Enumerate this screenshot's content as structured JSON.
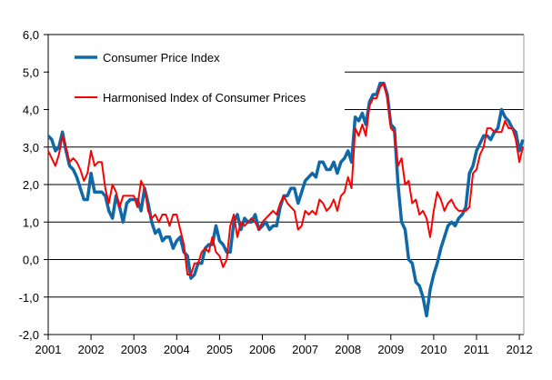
{
  "chart_data": {
    "type": "line",
    "title": "",
    "xlabel": "",
    "ylabel": "",
    "x_start": "2001-01",
    "frequency": "monthly",
    "xlim": [
      "2001-01",
      "2012-03"
    ],
    "ylim": [
      -2.0,
      6.0
    ],
    "x_ticks": [
      "2001",
      "2002",
      "2003",
      "2004",
      "2005",
      "2006",
      "2007",
      "2008",
      "2009",
      "2010",
      "2011",
      "2012"
    ],
    "y_ticks": [
      "-2,0",
      "-1,0",
      "0,0",
      "1,0",
      "2,0",
      "3,0",
      "4,0",
      "5,0",
      "6,0"
    ],
    "grid": "horizontal",
    "legend_position": "top-left",
    "series": [
      {
        "name": "Consumer Price Index",
        "color": "#0f69a8",
        "values": [
          3.3,
          3.2,
          2.9,
          3.0,
          3.4,
          2.9,
          2.5,
          2.4,
          2.2,
          1.9,
          1.6,
          1.6,
          2.3,
          1.8,
          1.8,
          1.8,
          1.7,
          1.3,
          1.1,
          1.7,
          1.4,
          1.0,
          1.5,
          1.6,
          1.6,
          1.6,
          1.3,
          1.9,
          1.5,
          1.0,
          0.7,
          0.8,
          0.5,
          0.6,
          0.6,
          0.3,
          0.5,
          0.6,
          0.2,
          0.1,
          -0.5,
          -0.4,
          -0.1,
          -0.1,
          0.3,
          0.4,
          0.4,
          0.9,
          0.5,
          0.4,
          0.2,
          0.2,
          1.0,
          1.2,
          0.8,
          1.1,
          1.0,
          1.0,
          1.2,
          0.8,
          0.9,
          1.0,
          0.8,
          0.9,
          0.9,
          1.4,
          1.7,
          1.7,
          1.9,
          1.9,
          1.5,
          1.8,
          2.1,
          2.2,
          2.3,
          2.2,
          2.6,
          2.6,
          2.4,
          2.4,
          2.6,
          2.3,
          2.6,
          2.7,
          2.9,
          2.6,
          3.8,
          3.7,
          3.9,
          3.6,
          4.2,
          4.4,
          4.4,
          4.7,
          4.7,
          4.4,
          3.6,
          3.5,
          2.0,
          1.0,
          0.8,
          0.0,
          -0.1,
          -0.6,
          -0.7,
          -1.0,
          -1.5,
          -0.8,
          -0.4,
          -0.1,
          0.3,
          0.6,
          0.9,
          1.0,
          0.9,
          1.1,
          1.2,
          1.4,
          2.3,
          2.5,
          2.9,
          3.1,
          3.3,
          3.3,
          3.2,
          3.4,
          3.5,
          4.0,
          3.8,
          3.7,
          3.5,
          3.4,
          2.9,
          3.2
        ]
      },
      {
        "name": "Harmonised Index of Consumer Prices",
        "color": "#ff0000",
        "values": [
          2.9,
          2.7,
          2.5,
          2.8,
          3.3,
          3.0,
          2.6,
          2.7,
          2.6,
          2.4,
          2.1,
          2.3,
          2.9,
          2.5,
          2.6,
          2.6,
          1.9,
          1.5,
          2.0,
          1.8,
          1.4,
          1.7,
          1.7,
          1.7,
          1.7,
          1.4,
          2.1,
          1.9,
          1.3,
          1.1,
          1.2,
          1.0,
          1.2,
          1.2,
          0.9,
          1.2,
          1.2,
          0.8,
          0.4,
          -0.4,
          -0.4,
          -0.1,
          -0.1,
          0.2,
          0.3,
          0.2,
          0.6,
          0.2,
          0.1,
          -0.2,
          0.0,
          0.9,
          1.2,
          0.6,
          1.0,
          0.9,
          1.0,
          1.1,
          1.0,
          0.8,
          1.0,
          1.1,
          1.2,
          1.3,
          1.2,
          1.5,
          1.7,
          1.5,
          1.4,
          1.3,
          0.8,
          0.9,
          1.3,
          1.2,
          1.3,
          1.2,
          1.6,
          1.5,
          1.3,
          1.4,
          1.6,
          1.3,
          1.7,
          1.8,
          2.2,
          1.9,
          3.5,
          3.3,
          3.6,
          3.3,
          4.1,
          4.3,
          4.3,
          4.6,
          4.7,
          4.3,
          3.5,
          3.4,
          2.5,
          2.7,
          2.0,
          2.1,
          1.5,
          1.6,
          1.2,
          1.3,
          1.1,
          0.6,
          1.3,
          1.8,
          1.6,
          1.3,
          1.5,
          1.6,
          1.4,
          1.3,
          1.3,
          1.3,
          1.4,
          2.3,
          2.4,
          2.8,
          3.0,
          3.5,
          3.5,
          3.4,
          3.4,
          3.4,
          3.7,
          3.5,
          3.5,
          3.2,
          2.6,
          3.0
        ]
      }
    ]
  }
}
